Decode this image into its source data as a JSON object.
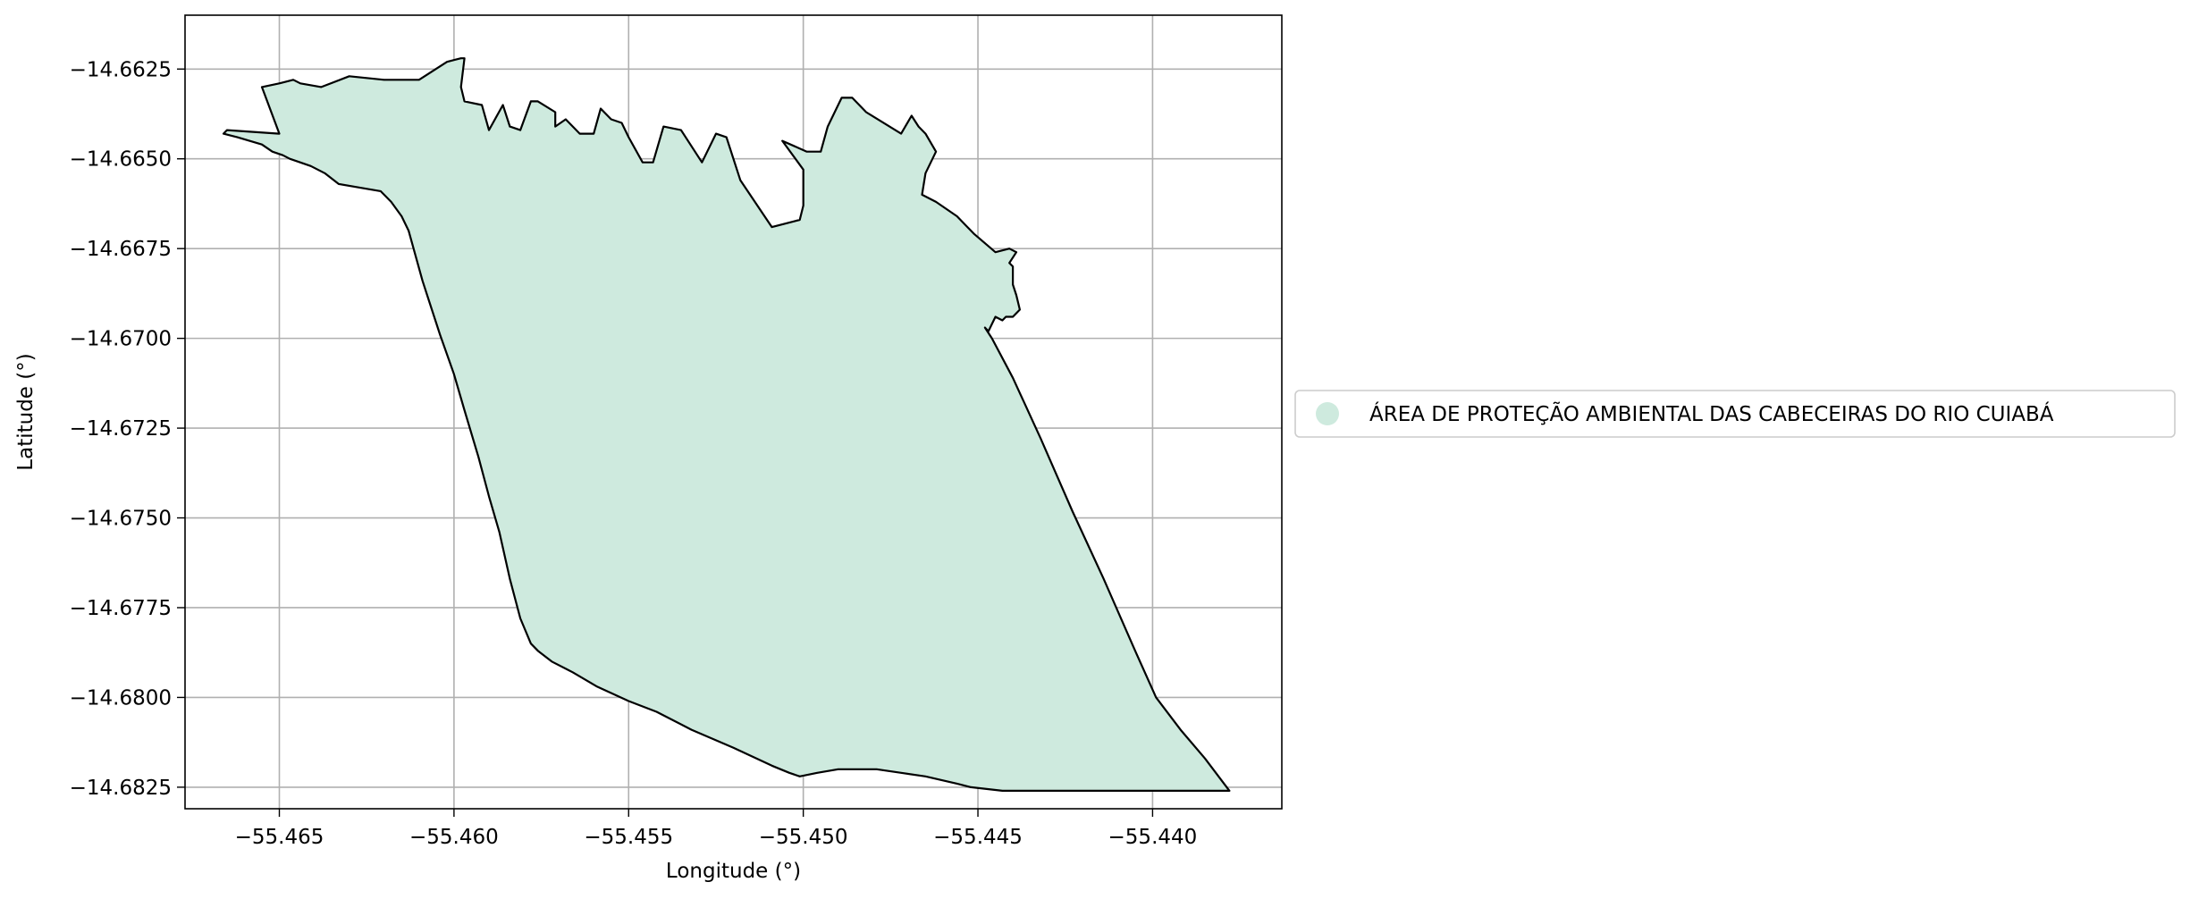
{
  "chart_data": {
    "type": "map",
    "xlabel": "Longitude (°)",
    "ylabel": "Latitude (°)",
    "xlim": [
      -55.4677,
      -55.4363
    ],
    "ylim": [
      -14.6831,
      -14.661
    ],
    "grid": true,
    "x_ticks": [
      -55.465,
      -55.46,
      -55.455,
      -55.45,
      -55.445,
      -55.44
    ],
    "x_tick_labels": [
      "−55.465",
      "−55.460",
      "−55.455",
      "−55.450",
      "−55.445",
      "−55.440"
    ],
    "y_ticks": [
      -14.6625,
      -14.665,
      -14.6675,
      -14.67,
      -14.6725,
      -14.675,
      -14.6775,
      -14.68,
      -14.6825
    ],
    "y_tick_labels": [
      "−14.6625",
      "−14.6650",
      "−14.6675",
      "−14.6700",
      "−14.6725",
      "−14.6750",
      "−14.6775",
      "−14.6800",
      "−14.6825"
    ],
    "legend": {
      "placement": "center-right outside",
      "entries": [
        {
          "label": "ÁREA DE PROTEÇÃO AMBIENTAL DAS CABECEIRAS DO RIO CUIABÁ",
          "color": "#ceeade"
        }
      ]
    },
    "series": [
      {
        "name": "ÁREA DE PROTEÇÃO AMBIENTAL DAS CABECEIRAS DO RIO CUIABÁ",
        "fill": "#ceeade",
        "edge": "#000000",
        "coordinates": [
          [
            -55.4655,
            -14.663
          ],
          [
            -55.465,
            -14.6629
          ],
          [
            -55.4646,
            -14.6628
          ],
          [
            -55.4644,
            -14.6629
          ],
          [
            -55.4638,
            -14.663
          ],
          [
            -55.463,
            -14.6627
          ],
          [
            -55.462,
            -14.6628
          ],
          [
            -55.461,
            -14.6628
          ],
          [
            -55.4602,
            -14.6623
          ],
          [
            -55.4598,
            -14.6622
          ],
          [
            -55.4597,
            -14.6622
          ],
          [
            -55.4598,
            -14.663
          ],
          [
            -55.4597,
            -14.6634
          ],
          [
            -55.4592,
            -14.6635
          ],
          [
            -55.459,
            -14.6642
          ],
          [
            -55.4586,
            -14.6635
          ],
          [
            -55.4584,
            -14.6641
          ],
          [
            -55.4581,
            -14.6642
          ],
          [
            -55.4578,
            -14.6634
          ],
          [
            -55.4576,
            -14.6634
          ],
          [
            -55.4571,
            -14.6637
          ],
          [
            -55.4571,
            -14.6641
          ],
          [
            -55.4568,
            -14.6639
          ],
          [
            -55.4564,
            -14.6643
          ],
          [
            -55.456,
            -14.6643
          ],
          [
            -55.4558,
            -14.6636
          ],
          [
            -55.4555,
            -14.6639
          ],
          [
            -55.4552,
            -14.664
          ],
          [
            -55.455,
            -14.6644
          ],
          [
            -55.4546,
            -14.6651
          ],
          [
            -55.4543,
            -14.6651
          ],
          [
            -55.454,
            -14.6641
          ],
          [
            -55.4535,
            -14.6642
          ],
          [
            -55.4529,
            -14.6651
          ],
          [
            -55.4525,
            -14.6643
          ],
          [
            -55.4522,
            -14.6644
          ],
          [
            -55.4518,
            -14.6656
          ],
          [
            -55.4509,
            -14.6669
          ],
          [
            -55.4501,
            -14.6667
          ],
          [
            -55.45,
            -14.6663
          ],
          [
            -55.45,
            -14.6653
          ],
          [
            -55.4506,
            -14.6645
          ],
          [
            -55.4499,
            -14.6648
          ],
          [
            -55.4495,
            -14.6648
          ],
          [
            -55.4493,
            -14.6641
          ],
          [
            -55.4489,
            -14.6633
          ],
          [
            -55.4486,
            -14.6633
          ],
          [
            -55.4482,
            -14.6637
          ],
          [
            -55.4472,
            -14.6643
          ],
          [
            -55.4469,
            -14.6638
          ],
          [
            -55.4467,
            -14.6641
          ],
          [
            -55.4465,
            -14.6643
          ],
          [
            -55.4462,
            -14.6648
          ],
          [
            -55.4465,
            -14.6654
          ],
          [
            -55.4466,
            -14.666
          ],
          [
            -55.4462,
            -14.6662
          ],
          [
            -55.4456,
            -14.6666
          ],
          [
            -55.4453,
            -14.6669
          ],
          [
            -55.4451,
            -14.6671
          ],
          [
            -55.4445,
            -14.6676
          ],
          [
            -55.4441,
            -14.6675
          ],
          [
            -55.4439,
            -14.6676
          ],
          [
            -55.4441,
            -14.6679
          ],
          [
            -55.444,
            -14.668
          ],
          [
            -55.444,
            -14.6685
          ],
          [
            -55.4439,
            -14.6688
          ],
          [
            -55.4438,
            -14.6692
          ],
          [
            -55.444,
            -14.6694
          ],
          [
            -55.4442,
            -14.6694
          ],
          [
            -55.4443,
            -14.6695
          ],
          [
            -55.4445,
            -14.6694
          ],
          [
            -55.4447,
            -14.6698
          ],
          [
            -55.4448,
            -14.6697
          ],
          [
            -55.4446,
            -14.67
          ],
          [
            -55.444,
            -14.6711
          ],
          [
            -55.4432,
            -14.6728
          ],
          [
            -55.4423,
            -14.6748
          ],
          [
            -55.4414,
            -14.6767
          ],
          [
            -55.4405,
            -14.6787
          ],
          [
            -55.4399,
            -14.68
          ],
          [
            -55.4392,
            -14.6809
          ],
          [
            -55.4385,
            -14.6817
          ],
          [
            -55.4378,
            -14.6826
          ],
          [
            -55.4388,
            -14.6826
          ],
          [
            -55.4396,
            -14.6826
          ],
          [
            -55.4403,
            -14.6826
          ],
          [
            -55.441,
            -14.6826
          ],
          [
            -55.442,
            -14.6826
          ],
          [
            -55.4435,
            -14.6826
          ],
          [
            -55.4443,
            -14.6826
          ],
          [
            -55.4452,
            -14.6825
          ],
          [
            -55.4456,
            -14.6824
          ],
          [
            -55.4465,
            -14.6822
          ],
          [
            -55.4472,
            -14.6821
          ],
          [
            -55.4479,
            -14.682
          ],
          [
            -55.4486,
            -14.682
          ],
          [
            -55.449,
            -14.682
          ],
          [
            -55.4496,
            -14.6821
          ],
          [
            -55.4501,
            -14.6822
          ],
          [
            -55.4504,
            -14.6821
          ],
          [
            -55.4509,
            -14.6819
          ],
          [
            -55.452,
            -14.6814
          ],
          [
            -55.4532,
            -14.6809
          ],
          [
            -55.4542,
            -14.6804
          ],
          [
            -55.455,
            -14.6801
          ],
          [
            -55.4559,
            -14.6797
          ],
          [
            -55.4566,
            -14.6793
          ],
          [
            -55.4572,
            -14.679
          ],
          [
            -55.4576,
            -14.6787
          ],
          [
            -55.4578,
            -14.6785
          ],
          [
            -55.4581,
            -14.6778
          ],
          [
            -55.4584,
            -14.6767
          ],
          [
            -55.4587,
            -14.6754
          ],
          [
            -55.459,
            -14.6744
          ],
          [
            -55.4593,
            -14.6733
          ],
          [
            -55.4597,
            -14.672
          ],
          [
            -55.46,
            -14.671
          ],
          [
            -55.4604,
            -14.6699
          ],
          [
            -55.4607,
            -14.669
          ],
          [
            -55.4609,
            -14.6684
          ],
          [
            -55.4611,
            -14.6677
          ],
          [
            -55.4613,
            -14.667
          ],
          [
            -55.4615,
            -14.6666
          ],
          [
            -55.4618,
            -14.6662
          ],
          [
            -55.4621,
            -14.6659
          ],
          [
            -55.4627,
            -14.6658
          ],
          [
            -55.4633,
            -14.6657
          ],
          [
            -55.4637,
            -14.6654
          ],
          [
            -55.4641,
            -14.6652
          ],
          [
            -55.4647,
            -14.665
          ],
          [
            -55.4649,
            -14.6649
          ],
          [
            -55.4652,
            -14.6648
          ],
          [
            -55.4655,
            -14.6646
          ],
          [
            -55.4662,
            -14.6644
          ],
          [
            -55.4666,
            -14.6643
          ],
          [
            -55.4665,
            -14.6642
          ],
          [
            -55.465,
            -14.6643
          ],
          [
            -55.4655,
            -14.663
          ]
        ]
      }
    ]
  }
}
